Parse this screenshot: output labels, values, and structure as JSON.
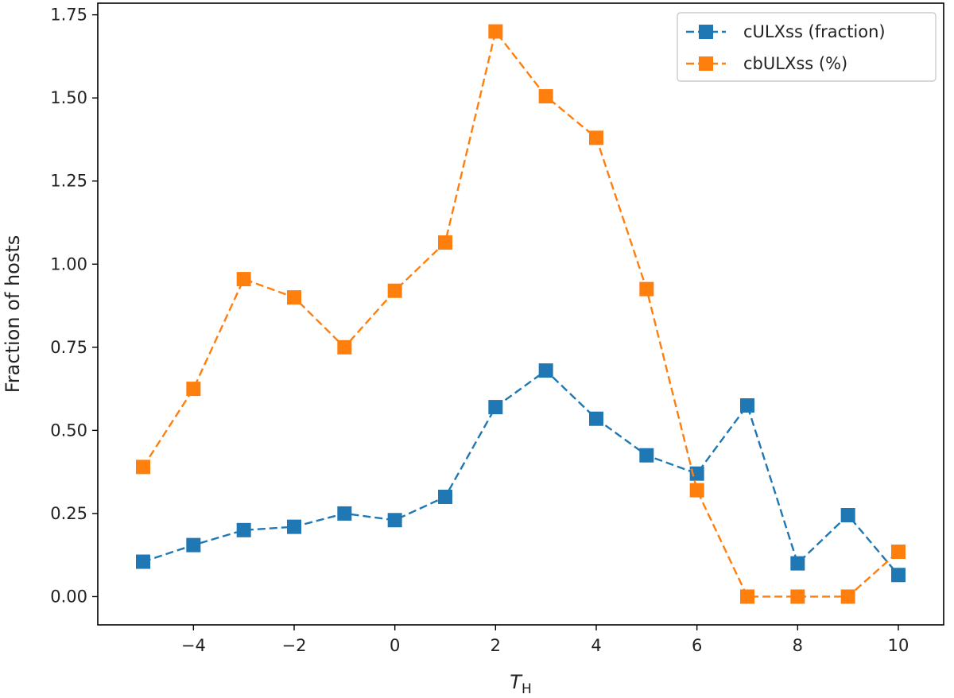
{
  "chart_data": {
    "type": "line",
    "title": "",
    "xlabel": "T",
    "xlabel_sub": "H",
    "ylabel": "Fraction of hosts",
    "x": [
      -5,
      -4,
      -3,
      -2,
      -1,
      0,
      1,
      2,
      3,
      4,
      5,
      6,
      7,
      8,
      9,
      10
    ],
    "xlim": [
      -5.9,
      10.9
    ],
    "ylim": [
      -0.085,
      1.785
    ],
    "xticks": [
      -4,
      -2,
      0,
      2,
      4,
      6,
      8,
      10
    ],
    "xtick_labels": [
      "−4",
      "−2",
      "0",
      "2",
      "4",
      "6",
      "8",
      "10"
    ],
    "yticks": [
      0,
      0.25,
      0.5,
      0.75,
      1.0,
      1.25,
      1.5,
      1.75
    ],
    "ytick_labels": [
      "0.00",
      "0.25",
      "0.50",
      "0.75",
      "1.00",
      "1.25",
      "1.50",
      "1.75"
    ],
    "grid": false,
    "legend_position": "top-right",
    "series": [
      {
        "name": "cULXss (fraction)",
        "color": "#1f77b4",
        "marker": "square",
        "linestyle": "dashed",
        "values": [
          0.105,
          0.155,
          0.2,
          0.21,
          0.25,
          0.23,
          0.3,
          0.57,
          0.68,
          0.535,
          0.425,
          0.37,
          0.575,
          0.1,
          0.245,
          0.065
        ]
      },
      {
        "name": "cbULXss (%)",
        "color": "#ff7f0e",
        "marker": "square",
        "linestyle": "dashed",
        "values": [
          0.39,
          0.625,
          0.955,
          0.9,
          0.75,
          0.92,
          1.065,
          1.7,
          1.505,
          1.38,
          0.925,
          0.32,
          0.0,
          0.0,
          0.0,
          0.135
        ]
      }
    ]
  }
}
